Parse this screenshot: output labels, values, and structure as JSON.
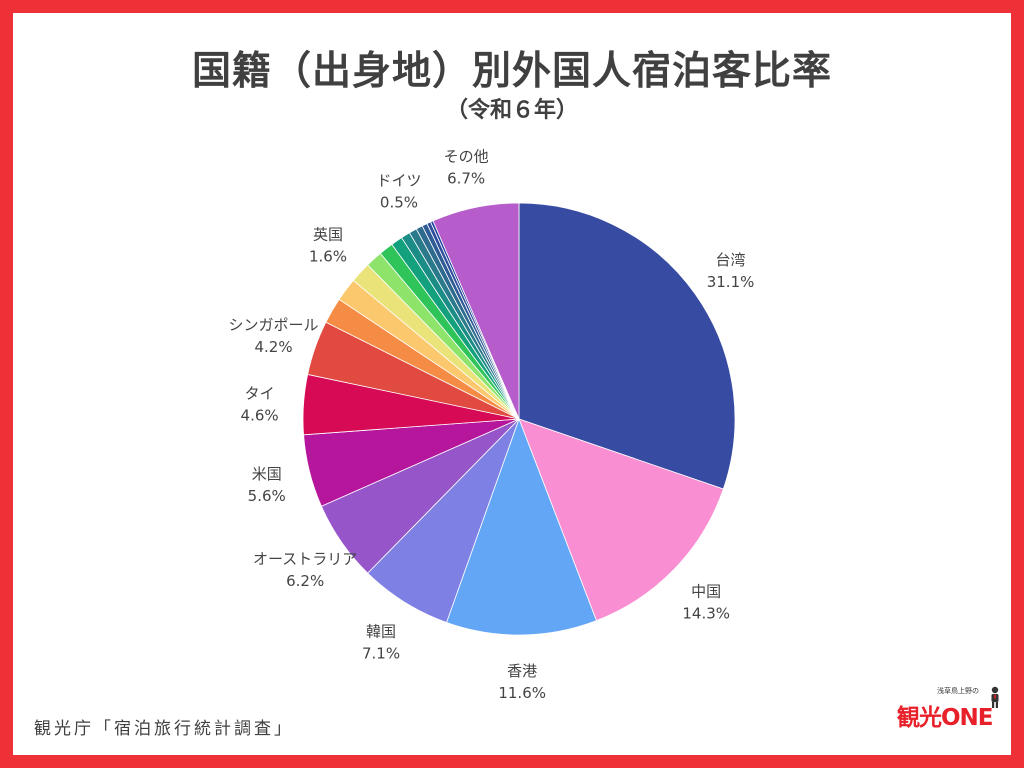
{
  "title": "国籍（出身地）別外国人宿泊客比率",
  "subtitle": "（令和６年）",
  "source": "観光庁「宿泊旅行統計調査」",
  "logo": {
    "small_text": "浅草鳥上野の",
    "main_text": "観光ONE"
  },
  "colors": {
    "background_border": "#ee3136"
  },
  "chart_data": {
    "type": "pie",
    "unit": "%",
    "slices": [
      {
        "label": "台湾",
        "value": 31.1,
        "value_label": "31.1%",
        "color": "#374ba2",
        "labeled": true
      },
      {
        "label": "中国",
        "value": 14.3,
        "value_label": "14.3%",
        "color": "#f98fd2",
        "labeled": true
      },
      {
        "label": "香港",
        "value": 11.6,
        "value_label": "11.6%",
        "color": "#64a6f6",
        "labeled": true
      },
      {
        "label": "韓国",
        "value": 7.1,
        "value_label": "7.1%",
        "color": "#7e80e4",
        "labeled": true
      },
      {
        "label": "オーストラリア",
        "value": 6.2,
        "value_label": "6.2%",
        "color": "#9755ca",
        "labeled": true
      },
      {
        "label": "米国",
        "value": 5.6,
        "value_label": "5.6%",
        "color": "#b5169c",
        "labeled": true
      },
      {
        "label": "タイ",
        "value": 4.6,
        "value_label": "4.6%",
        "color": "#d60a55",
        "labeled": true
      },
      {
        "label": "シンガポール",
        "value": 4.2,
        "value_label": "4.2%",
        "color": "#e04a40",
        "labeled": true
      },
      {
        "label": "",
        "value": 2.0,
        "value_label": "",
        "color": "#f58c46",
        "labeled": false
      },
      {
        "label": "",
        "value": 1.8,
        "value_label": "",
        "color": "#fbc86e",
        "labeled": false
      },
      {
        "label": "英国",
        "value": 1.6,
        "value_label": "1.6%",
        "color": "#e9e37a",
        "labeled": true
      },
      {
        "label": "",
        "value": 1.3,
        "value_label": "",
        "color": "#8ee36b",
        "labeled": false
      },
      {
        "label": "",
        "value": 1.1,
        "value_label": "",
        "color": "#2fc45a",
        "labeled": false
      },
      {
        "label": "",
        "value": 0.9,
        "value_label": "",
        "color": "#13a07c",
        "labeled": false
      },
      {
        "label": "",
        "value": 0.7,
        "value_label": "",
        "color": "#1c8c86",
        "labeled": false
      },
      {
        "label": "",
        "value": 0.6,
        "value_label": "",
        "color": "#2b7a8b",
        "labeled": false
      },
      {
        "label": "ドイツ",
        "value": 0.5,
        "value_label": "0.5%",
        "color": "#2e6b8e",
        "labeled": true
      },
      {
        "label": "",
        "value": 0.4,
        "value_label": "",
        "color": "#305c95",
        "labeled": false
      },
      {
        "label": "",
        "value": 0.3,
        "value_label": "",
        "color": "#2f4f9c",
        "labeled": false
      },
      {
        "label": "",
        "value": 0.2,
        "value_label": "",
        "color": "#23449e",
        "labeled": false
      },
      {
        "label": "その他",
        "value": 6.7,
        "value_label": "6.7%",
        "color": "#b65ccb",
        "labeled": true
      }
    ]
  }
}
